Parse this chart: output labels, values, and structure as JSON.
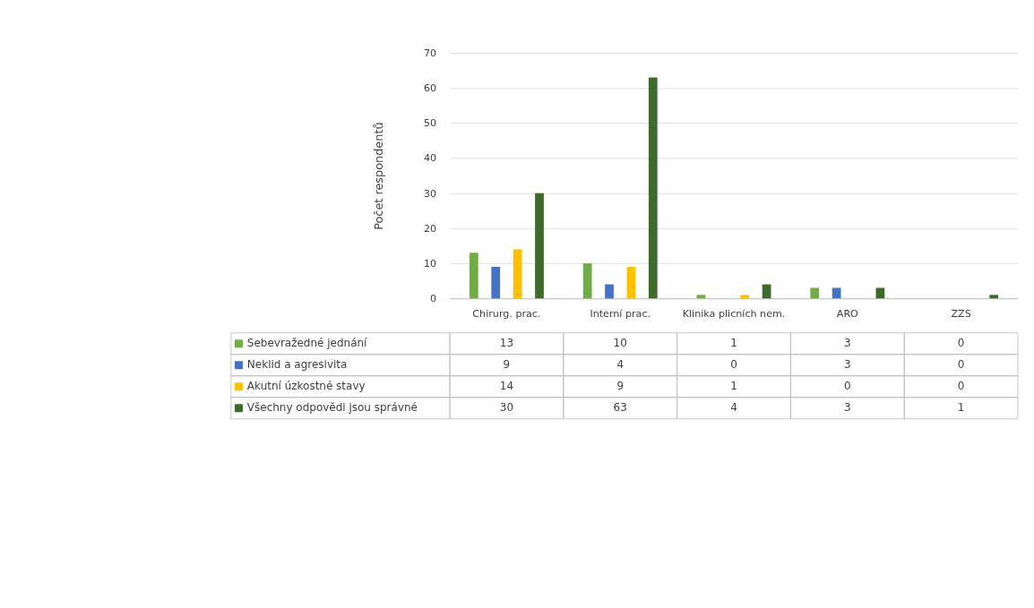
{
  "chart_data": {
    "type": "bar",
    "ylabel": "Počet respondentů",
    "categories": [
      "Chirurg. prac.",
      "Interní prac.",
      "Klinika plicních nem.",
      "ARO",
      "ZZS"
    ],
    "series": [
      {
        "name": "Sebevražedné jednání",
        "color": "#70ad47",
        "values": [
          13,
          10,
          1,
          3,
          0
        ]
      },
      {
        "name": "Neklid a agresivita",
        "color": "#4472c4",
        "values": [
          9,
          4,
          0,
          3,
          0
        ]
      },
      {
        "name": "Akutní úzkostné stavy",
        "color": "#ffc000",
        "values": [
          14,
          9,
          1,
          0,
          0
        ]
      },
      {
        "name": "Všechny odpovědi jsou správné",
        "color": "#3e6b2b",
        "values": [
          30,
          63,
          4,
          3,
          1
        ]
      }
    ],
    "ylim": [
      0,
      70
    ],
    "yticks": [
      0,
      10,
      20,
      30,
      40,
      50,
      60,
      70
    ],
    "grid": "y",
    "legend": "bottom left",
    "data_labels": true
  }
}
